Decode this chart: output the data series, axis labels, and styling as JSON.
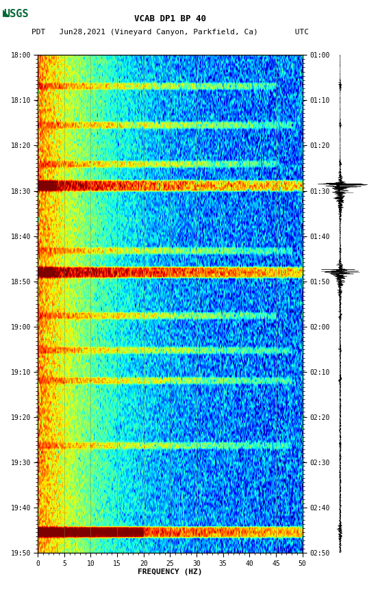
{
  "title_line1": "VCAB DP1 BP 40",
  "title_line2_pdt": "PDT   Jun28,2021 (Vineyard Canyon, Parkfield, Ca)        UTC",
  "xlabel": "FREQUENCY (HZ)",
  "freq_min": 0,
  "freq_max": 50,
  "ytick_pdt": [
    "18:00",
    "18:10",
    "18:20",
    "18:30",
    "18:40",
    "18:50",
    "19:00",
    "19:10",
    "19:20",
    "19:30",
    "19:40",
    "19:50"
  ],
  "ytick_utc": [
    "01:00",
    "01:10",
    "01:20",
    "01:30",
    "01:40",
    "01:50",
    "02:00",
    "02:10",
    "02:20",
    "02:30",
    "02:40",
    "02:50"
  ],
  "xticks": [
    0,
    5,
    10,
    15,
    20,
    25,
    30,
    35,
    40,
    45,
    50
  ],
  "vline_freqs": [
    5,
    10,
    15,
    20,
    25,
    30,
    35,
    40,
    45
  ],
  "fig_bg": "#ffffff",
  "usgs_green": "#006633",
  "font_family": "monospace",
  "spectrogram_seed": 7,
  "num_time_bins": 230,
  "num_freq_bins": 400,
  "total_minutes": 115,
  "seismogram_seed": 123,
  "vline_color": "#888844",
  "vline_alpha": 0.6,
  "vline_lw": 0.5,
  "seismic_events_minutes": [
    7,
    16,
    25,
    30,
    45,
    50,
    60,
    68,
    75,
    90,
    110
  ],
  "seismic_widths": [
    1.0,
    0.8,
    0.8,
    2.5,
    0.8,
    2.5,
    1.0,
    0.8,
    1.0,
    0.8,
    2.0
  ],
  "seismic_strengths": [
    0.7,
    0.6,
    0.7,
    1.5,
    0.5,
    1.5,
    0.7,
    0.5,
    0.6,
    0.5,
    1.0
  ],
  "seismic_freq_extents": [
    45,
    48,
    45,
    20,
    48,
    48,
    45,
    48,
    48,
    48,
    50
  ],
  "big_quake_minutes": [
    30,
    50
  ],
  "big_quake_seis_amps": [
    4.0,
    3.0
  ]
}
